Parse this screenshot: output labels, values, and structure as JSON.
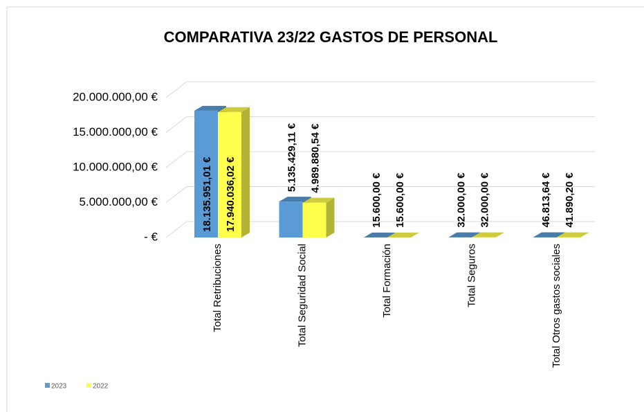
{
  "chart_data": {
    "type": "bar3d",
    "title": "COMPARATIVA 23/22 GASTOS DE PERSONAL",
    "categories": [
      "Total Retribuciones",
      "Total Seguridad Social",
      "Total Formación",
      "Total Seguros",
      "Total Otros gastos sociales"
    ],
    "series": [
      {
        "name": "2023",
        "color": "#5b9bd5",
        "values": [
          18135951.01,
          5135429.11,
          15600,
          32000,
          46813.64
        ],
        "value_labels": [
          "18.135.951,01 €",
          "5.135.429,11 €",
          "15.600,00 €",
          "32.000,00 €",
          "46.813,64 €"
        ]
      },
      {
        "name": "2022",
        "color": "#ffff4d",
        "values": [
          17940036.02,
          4989880.54,
          15600,
          32000,
          41890.2
        ],
        "value_labels": [
          "17.940.036,02 €",
          "4.989.880,54 €",
          "15.600,00 €",
          "32.000,00 €",
          "41.890,20 €"
        ]
      }
    ],
    "ylim": [
      0,
      20000000
    ],
    "yticks": [
      {
        "value": 0,
        "label": "-   €"
      },
      {
        "value": 5000000,
        "label": "5.000.000,00 €"
      },
      {
        "value": 10000000,
        "label": "10.000.000,00 €"
      },
      {
        "value": 15000000,
        "label": "15.000.000,00 €"
      },
      {
        "value": 20000000,
        "label": "20.000.000,00 €"
      }
    ],
    "grid": true,
    "legend": "bottom-left"
  }
}
